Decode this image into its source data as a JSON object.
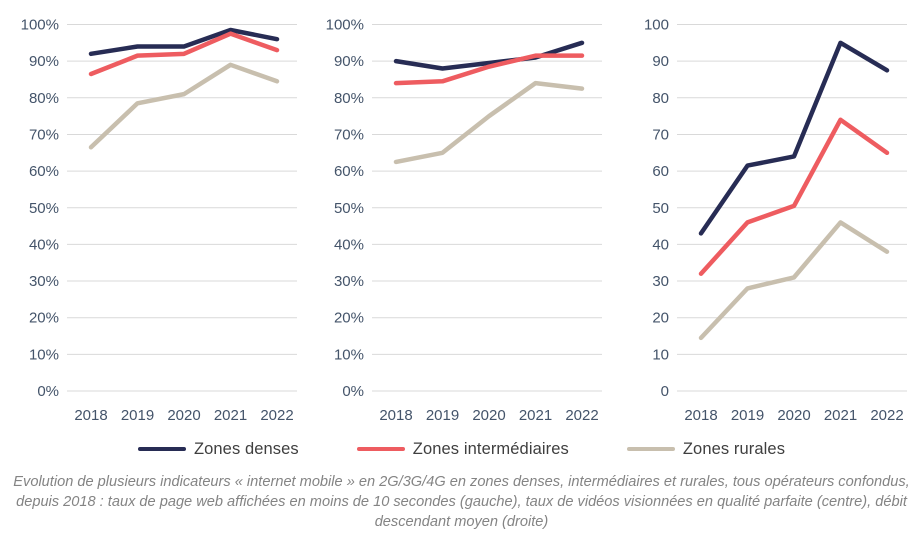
{
  "colors": {
    "denses": "#272C54",
    "intermediaires": "#EE5C60",
    "rurales": "#C8BFAE",
    "gridline": "#D9D9D9",
    "axis_text": "#44546A",
    "legend_text": "#3F3F3F",
    "caption_text": "#848484"
  },
  "legend": {
    "items": [
      {
        "id": "denses",
        "label": "Zones denses",
        "color": "#272C54"
      },
      {
        "id": "intermediaires",
        "label": "Zones intermédiaires",
        "color": "#EE5C60"
      },
      {
        "id": "rurales",
        "label": "Zones rurales",
        "color": "#C8BFAE"
      }
    ]
  },
  "caption": "Evolution de plusieurs indicateurs « internet mobile » en 2G/3G/4G en zones denses, intermédiaires et rurales, tous opérateurs confondus, depuis 2018 : taux de page web affichées en moins de 10 secondes (gauche), taux de vidéos visionnées en qualité parfaite (centre), débit descendant moyen (droite)",
  "chart_data": [
    {
      "type": "line",
      "id": "pages-web-10s",
      "title": "",
      "xlabel": "",
      "ylabel": "",
      "categories": [
        "2018",
        "2019",
        "2020",
        "2021",
        "2022"
      ],
      "ylim": [
        0,
        100
      ],
      "y_ticks": [
        0,
        10,
        20,
        30,
        40,
        50,
        60,
        70,
        80,
        90,
        100
      ],
      "y_suffix": "%",
      "grid": "horizontal",
      "series": [
        {
          "id": "denses",
          "name": "Zones denses",
          "color": "#272C54",
          "values": [
            92,
            94,
            94,
            98.5,
            96
          ]
        },
        {
          "id": "intermediaires",
          "name": "Zones intermédiaires",
          "color": "#EE5C60",
          "values": [
            86.5,
            91.5,
            92,
            97.5,
            93
          ]
        },
        {
          "id": "rurales",
          "name": "Zones rurales",
          "color": "#C8BFAE",
          "values": [
            66.5,
            78.5,
            81,
            89,
            84.5
          ]
        }
      ]
    },
    {
      "type": "line",
      "id": "videos-qualite-parfaite",
      "title": "",
      "xlabel": "",
      "ylabel": "",
      "categories": [
        "2018",
        "2019",
        "2020",
        "2021",
        "2022"
      ],
      "ylim": [
        0,
        100
      ],
      "y_ticks": [
        0,
        10,
        20,
        30,
        40,
        50,
        60,
        70,
        80,
        90,
        100
      ],
      "y_suffix": "%",
      "grid": "horizontal",
      "series": [
        {
          "id": "denses",
          "name": "Zones denses",
          "color": "#272C54",
          "values": [
            90,
            88,
            89.5,
            91,
            95
          ]
        },
        {
          "id": "intermediaires",
          "name": "Zones intermédiaires",
          "color": "#EE5C60",
          "values": [
            84,
            84.5,
            88.5,
            91.5,
            91.5
          ]
        },
        {
          "id": "rurales",
          "name": "Zones rurales",
          "color": "#C8BFAE",
          "values": [
            62.5,
            65,
            75,
            84,
            82.5
          ]
        }
      ]
    },
    {
      "type": "line",
      "id": "debit-descendant-moyen",
      "title": "",
      "xlabel": "",
      "ylabel": "",
      "categories": [
        "2018",
        "2019",
        "2020",
        "2021",
        "2022"
      ],
      "ylim": [
        0,
        100
      ],
      "y_ticks": [
        0,
        10,
        20,
        30,
        40,
        50,
        60,
        70,
        80,
        90,
        100
      ],
      "y_suffix": "",
      "grid": "horizontal",
      "series": [
        {
          "id": "denses",
          "name": "Zones denses",
          "color": "#272C54",
          "values": [
            43,
            61.5,
            64,
            95,
            87.5
          ]
        },
        {
          "id": "intermediaires",
          "name": "Zones intermédiaires",
          "color": "#EE5C60",
          "values": [
            32,
            46,
            50.5,
            74,
            65
          ]
        },
        {
          "id": "rurales",
          "name": "Zones rurales",
          "color": "#C8BFAE",
          "values": [
            14.5,
            28,
            31,
            46,
            38
          ]
        }
      ]
    }
  ]
}
